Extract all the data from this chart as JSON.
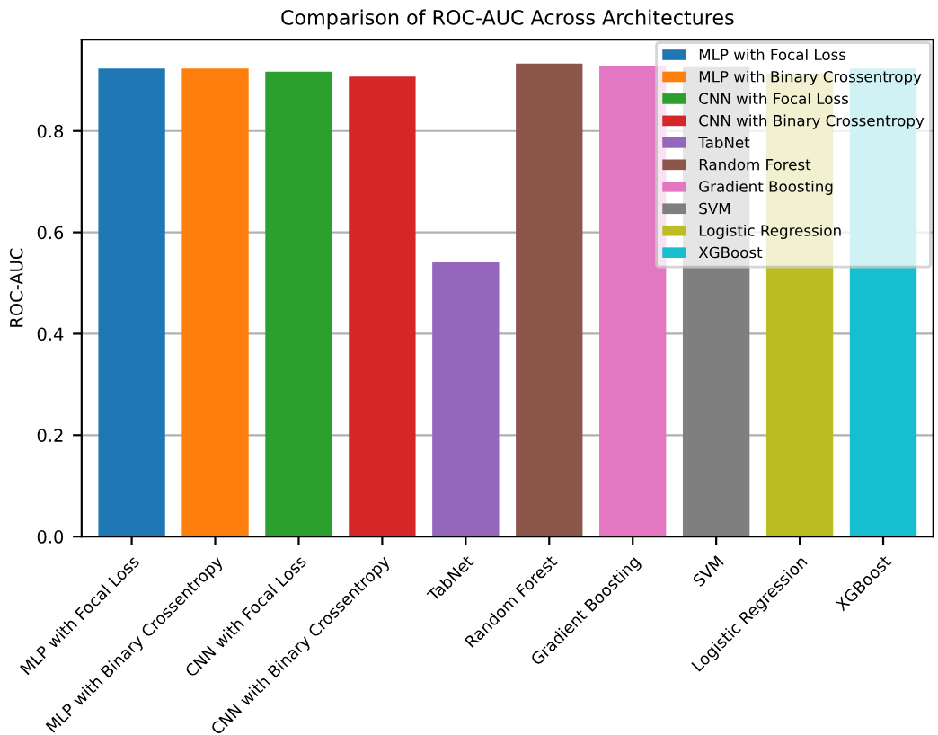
{
  "chart_data": {
    "type": "bar",
    "title": "Comparison of ROC-AUC Across Architectures",
    "ylabel": "ROC-AUC",
    "categories": [
      "MLP with Focal Loss",
      "MLP with Binary Crossentropy",
      "CNN with Focal Loss",
      "CNN with Binary Crossentropy",
      "TabNet",
      "Random Forest",
      "Gradient Boosting",
      "SVM",
      "Logistic Regression",
      "XGBoost"
    ],
    "series": [
      {
        "name": "MLP with Focal Loss",
        "color": "#1f77b4",
        "values": [
          0.923,
          null,
          null,
          null,
          null,
          null,
          null,
          null,
          null,
          null
        ]
      },
      {
        "name": "MLP with Binary Crossentropy",
        "color": "#ff7f0e",
        "values": [
          null,
          0.923,
          null,
          null,
          null,
          null,
          null,
          null,
          null,
          null
        ]
      },
      {
        "name": "CNN with Focal Loss",
        "color": "#2ca02c",
        "values": [
          null,
          null,
          0.917,
          null,
          null,
          null,
          null,
          null,
          null,
          null
        ]
      },
      {
        "name": "CNN with Binary Crossentropy",
        "color": "#d62728",
        "values": [
          null,
          null,
          null,
          0.907,
          null,
          null,
          null,
          null,
          null,
          null
        ]
      },
      {
        "name": "TabNet",
        "color": "#9467bd",
        "values": [
          null,
          null,
          null,
          null,
          0.541,
          null,
          null,
          null,
          null,
          null
        ]
      },
      {
        "name": "Random Forest",
        "color": "#8c564b",
        "values": [
          null,
          null,
          null,
          null,
          null,
          0.933,
          null,
          null,
          null,
          null
        ]
      },
      {
        "name": "Gradient Boosting",
        "color": "#e377c2",
        "values": [
          null,
          null,
          null,
          null,
          null,
          null,
          0.928,
          null,
          null,
          null
        ]
      },
      {
        "name": "SVM",
        "color": "#7f7f7f",
        "values": [
          null,
          null,
          null,
          null,
          null,
          null,
          null,
          0.926,
          null,
          null
        ]
      },
      {
        "name": "Logistic Regression",
        "color": "#bcbd22",
        "values": [
          null,
          null,
          null,
          null,
          null,
          null,
          null,
          null,
          0.914,
          null
        ]
      },
      {
        "name": "XGBoost",
        "color": "#17becf",
        "values": [
          null,
          null,
          null,
          null,
          null,
          null,
          null,
          null,
          null,
          0.923
        ]
      }
    ],
    "ylim": [
      0,
      0.98
    ],
    "yticks": [
      {
        "value": 0,
        "label": "0.0"
      },
      0.2,
      0.4,
      0.6,
      0.8
    ],
    "grid": "y",
    "legend": "top right"
  }
}
